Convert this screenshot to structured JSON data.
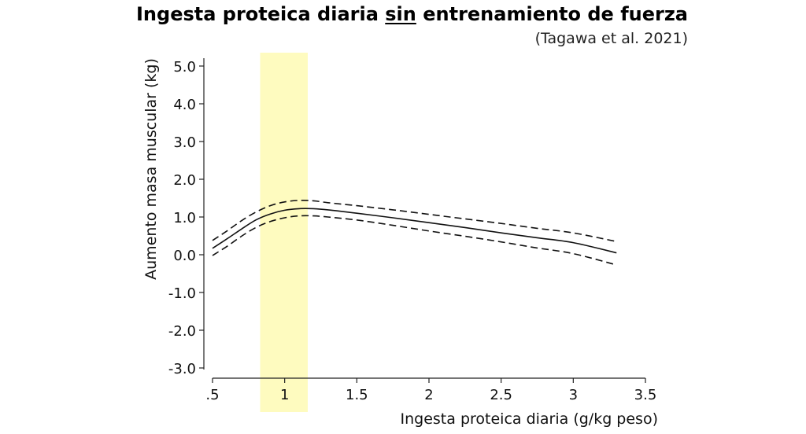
{
  "chart_data": {
    "type": "line",
    "title_parts": [
      "Ingesta proteica diaria ",
      "sin",
      " entrenamiento de fuerza"
    ],
    "subtitle": "(Tagawa et al. 2021)",
    "xlabel": "Ingesta proteica diaria (g/kg peso)",
    "ylabel": "Aumento masa muscular (kg)",
    "xlim": [
      0.5,
      3.5
    ],
    "ylim": [
      -3.0,
      5.0
    ],
    "x_ticks": [
      0.5,
      1,
      1.5,
      2,
      2.5,
      3,
      3.5
    ],
    "x_tick_labels": [
      ".5",
      "1",
      "1.5",
      "2",
      "2.5",
      "3",
      "3.5"
    ],
    "y_ticks": [
      5.0,
      4.0,
      3.0,
      2.0,
      1.0,
      0.0,
      -1.0,
      -2.0,
      -3.0
    ],
    "y_tick_labels": [
      "5.0",
      "4.0",
      "3.0",
      "2.0",
      "1.0",
      "0.0",
      "-1.0",
      "-2.0",
      "-3.0"
    ],
    "highlight_band": {
      "x_from": 0.83,
      "x_to": 1.16,
      "color": "#fefbbf"
    },
    "grid": false,
    "series": [
      {
        "role": "estimate",
        "style": "solid",
        "x": [
          0.5,
          0.6,
          0.7,
          0.8,
          0.9,
          1.0,
          1.1,
          1.2,
          1.3,
          1.5,
          1.75,
          2.0,
          2.25,
          2.5,
          2.75,
          3.0,
          3.3
        ],
        "y": [
          0.17,
          0.42,
          0.68,
          0.92,
          1.08,
          1.18,
          1.22,
          1.22,
          1.19,
          1.1,
          0.98,
          0.85,
          0.72,
          0.58,
          0.45,
          0.32,
          0.05
        ]
      },
      {
        "role": "upper-ci",
        "style": "dashed",
        "x": [
          0.5,
          0.6,
          0.7,
          0.8,
          0.9,
          1.0,
          1.1,
          1.2,
          1.3,
          1.5,
          1.75,
          2.0,
          2.25,
          2.5,
          2.75,
          3.0,
          3.3
        ],
        "y": [
          0.38,
          0.63,
          0.9,
          1.13,
          1.3,
          1.4,
          1.44,
          1.43,
          1.38,
          1.3,
          1.19,
          1.07,
          0.95,
          0.83,
          0.7,
          0.58,
          0.35
        ]
      },
      {
        "role": "lower-ci",
        "style": "dashed",
        "x": [
          0.5,
          0.6,
          0.7,
          0.8,
          0.9,
          1.0,
          1.1,
          1.2,
          1.3,
          1.5,
          1.75,
          2.0,
          2.25,
          2.5,
          2.75,
          3.0,
          3.3
        ],
        "y": [
          -0.02,
          0.22,
          0.49,
          0.72,
          0.88,
          0.98,
          1.03,
          1.03,
          1.0,
          0.92,
          0.78,
          0.63,
          0.49,
          0.34,
          0.18,
          0.03,
          -0.27
        ]
      }
    ]
  }
}
